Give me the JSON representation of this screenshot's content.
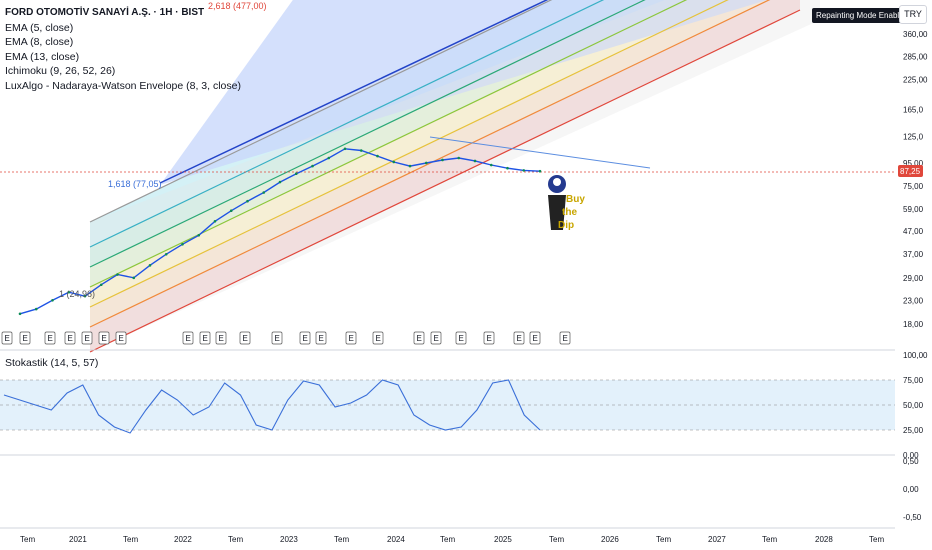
{
  "legend": {
    "title": "FORD OTOMOTİV SANAYİ A.Ş. · 1H · BIST",
    "lines": [
      "EMA (5, close)",
      "EMA (8, close)",
      "EMA (13, close)",
      "Ichimoku (9, 26, 52, 26)",
      "LuxAlgo - Nadaraya-Watson Envelope (8, 3, close)"
    ]
  },
  "badge": "Repainting Mode Enabled",
  "currency": "TRY",
  "price_label": "87,25",
  "fib_labels": {
    "a": "2,618 (477,00)",
    "b": "1,618 (77,05)",
    "c": "1 (24,96)"
  },
  "buy_dip": [
    "Buy",
    "the",
    "Dip"
  ],
  "stoch_label": "Stokastik (14, 5, 57)",
  "marker_letter": "E",
  "chart_data": {
    "type": "line",
    "price_axis": {
      "scale": "log",
      "ticks": [
        "360,00",
        "285,00",
        "225,00",
        "165,0",
        "125,0",
        "95,00",
        "75,00",
        "59,00",
        "47,00",
        "37,00",
        "29,00",
        "23,00",
        "18,00"
      ]
    },
    "osc_axis": {
      "ticks": [
        "100,00",
        "75,00",
        "50,00",
        "25,00",
        "0,00"
      ]
    },
    "lower_axis": {
      "ticks": [
        "0,50",
        "0,00",
        "-0,50"
      ]
    },
    "x_ticks": [
      "Tem",
      "2021",
      "Tem",
      "2022",
      "Tem",
      "2023",
      "Tem",
      "2024",
      "Tem",
      "2025",
      "Tem",
      "2026",
      "Tem",
      "2027",
      "Tem",
      "2028",
      "Tem"
    ],
    "series": [
      {
        "values": [
          20,
          21,
          23,
          25,
          24,
          27,
          30,
          29,
          33,
          37,
          41,
          45,
          52,
          58,
          64,
          70,
          78,
          85,
          92,
          100,
          110,
          108,
          102,
          96,
          92,
          95,
          98,
          100,
          97,
          93,
          90,
          88,
          87.25
        ]
      }
    ],
    "stochastic": [
      60,
      55,
      50,
      45,
      62,
      70,
      40,
      28,
      22,
      45,
      65,
      55,
      40,
      48,
      72,
      60,
      30,
      25,
      55,
      74,
      70,
      48,
      52,
      60,
      75,
      70,
      40,
      30,
      25,
      28,
      45,
      72,
      75,
      40,
      25
    ]
  }
}
